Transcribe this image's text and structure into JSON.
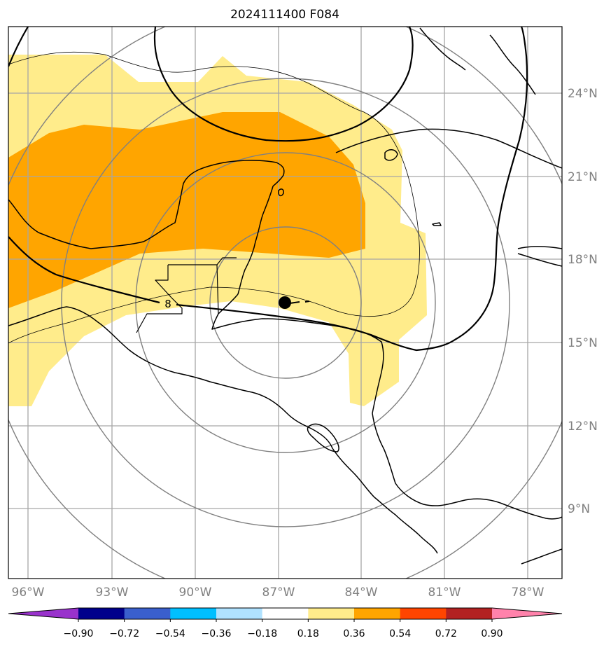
{
  "title": "2024111400 F084",
  "map": {
    "lon_labels": [
      "96°W",
      "93°W",
      "90°W",
      "87°W",
      "84°W",
      "81°W",
      "78°W"
    ],
    "lat_labels": [
      "24°N",
      "21°N",
      "18°N",
      "15°N",
      "12°N",
      "9°N"
    ],
    "contour_label": "8",
    "center_marker": {
      "lon": -86.7,
      "lat": 16.4
    },
    "grid_color": "#a6a6a6",
    "tick_label_color": "#808080"
  },
  "colorbar": {
    "ticks": [
      "−0.90",
      "−0.72",
      "−0.54",
      "−0.36",
      "−0.18",
      "0.18",
      "0.36",
      "0.54",
      "0.72",
      "0.90"
    ],
    "colors": [
      "#9932cc",
      "#00008b",
      "#3a5fcd",
      "#00bfff",
      "#b0e2ff",
      "#ffffff",
      "#ffec8b",
      "#ffa500",
      "#ff4500",
      "#b22222",
      "#ff82ab"
    ]
  }
}
